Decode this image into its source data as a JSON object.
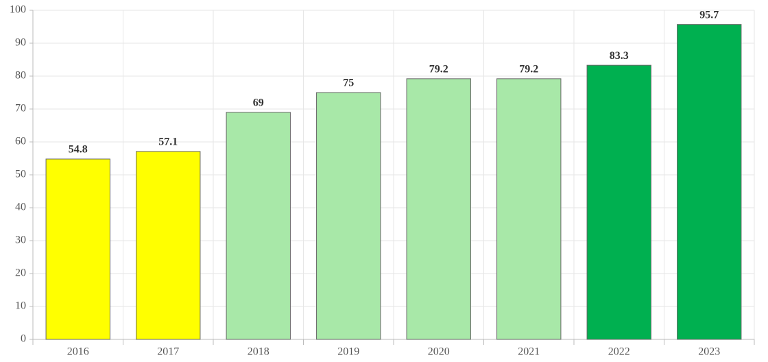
{
  "chart_data": {
    "type": "bar",
    "categories": [
      "2016",
      "2017",
      "2018",
      "2019",
      "2020",
      "2021",
      "2022",
      "2023"
    ],
    "values": [
      54.8,
      57.1,
      69,
      75,
      79.2,
      79.2,
      83.3,
      95.7
    ],
    "colors": [
      "#ffff00",
      "#ffff00",
      "#a8e8a8",
      "#a8e8a8",
      "#a8e8a8",
      "#a8e8a8",
      "#00b050",
      "#00b050"
    ],
    "ylim": [
      0,
      100
    ],
    "yticks": [
      0,
      10,
      20,
      30,
      40,
      50,
      60,
      70,
      80,
      90,
      100
    ],
    "grid": true
  }
}
